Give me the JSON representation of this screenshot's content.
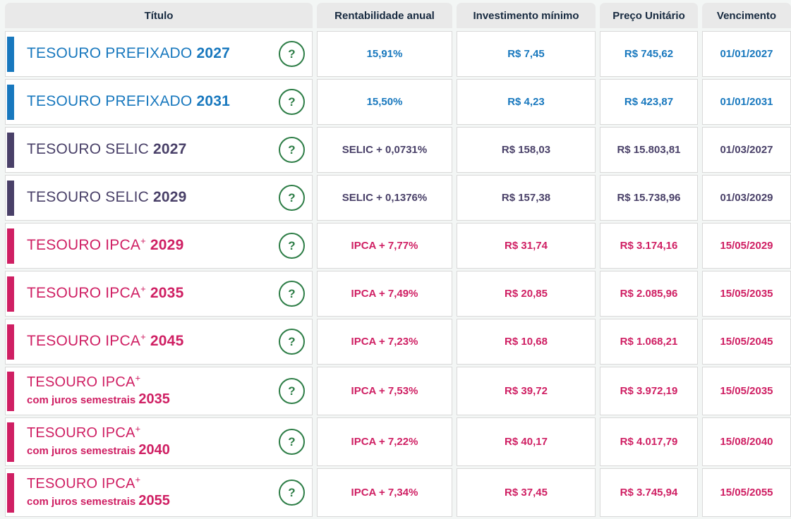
{
  "table": {
    "columns": [
      "Título",
      "Rentabilidade anual",
      "Investimento mínimo",
      "Preço Unitário",
      "Vencimento"
    ],
    "help_label": "?",
    "colors": {
      "prefixado": "#1878be",
      "selic": "#494068",
      "ipca": "#cf1f63",
      "help_green": "#2d7d46",
      "header_text": "#16293f",
      "header_bg": "#e9e9e9"
    },
    "rows": [
      {
        "theme": "prefixado",
        "title_main": "TESOURO PREFIXADO",
        "title_sup": "",
        "subtitle": "",
        "year": "2027",
        "rate": "15,91%",
        "min_investment": "R$ 7,45",
        "unit_price": "R$ 745,62",
        "maturity": "01/01/2027"
      },
      {
        "theme": "prefixado",
        "title_main": "TESOURO PREFIXADO",
        "title_sup": "",
        "subtitle": "",
        "year": "2031",
        "rate": "15,50%",
        "min_investment": "R$ 4,23",
        "unit_price": "R$ 423,87",
        "maturity": "01/01/2031"
      },
      {
        "theme": "selic",
        "title_main": "TESOURO SELIC",
        "title_sup": "",
        "subtitle": "",
        "year": "2027",
        "rate": "SELIC + 0,0731%",
        "min_investment": "R$ 158,03",
        "unit_price": "R$ 15.803,81",
        "maturity": "01/03/2027"
      },
      {
        "theme": "selic",
        "title_main": "TESOURO SELIC",
        "title_sup": "",
        "subtitle": "",
        "year": "2029",
        "rate": "SELIC + 0,1376%",
        "min_investment": "R$ 157,38",
        "unit_price": "R$ 15.738,96",
        "maturity": "01/03/2029"
      },
      {
        "theme": "ipca",
        "title_main": "TESOURO IPCA",
        "title_sup": "+",
        "subtitle": "",
        "year": "2029",
        "rate": "IPCA + 7,77%",
        "min_investment": "R$ 31,74",
        "unit_price": "R$ 3.174,16",
        "maturity": "15/05/2029"
      },
      {
        "theme": "ipca",
        "title_main": "TESOURO IPCA",
        "title_sup": "+",
        "subtitle": "",
        "year": "2035",
        "rate": "IPCA + 7,49%",
        "min_investment": "R$ 20,85",
        "unit_price": "R$ 2.085,96",
        "maturity": "15/05/2035"
      },
      {
        "theme": "ipca",
        "title_main": "TESOURO IPCA",
        "title_sup": "+",
        "subtitle": "",
        "year": "2045",
        "rate": "IPCA + 7,23%",
        "min_investment": "R$ 10,68",
        "unit_price": "R$ 1.068,21",
        "maturity": "15/05/2045"
      },
      {
        "theme": "ipca",
        "title_main": "TESOURO IPCA",
        "title_sup": "+",
        "subtitle": "com juros semestrais",
        "year": "2035",
        "rate": "IPCA + 7,53%",
        "min_investment": "R$ 39,72",
        "unit_price": "R$ 3.972,19",
        "maturity": "15/05/2035"
      },
      {
        "theme": "ipca",
        "title_main": "TESOURO IPCA",
        "title_sup": "+",
        "subtitle": "com juros semestrais",
        "year": "2040",
        "rate": "IPCA + 7,22%",
        "min_investment": "R$ 40,17",
        "unit_price": "R$ 4.017,79",
        "maturity": "15/08/2040"
      },
      {
        "theme": "ipca",
        "title_main": "TESOURO IPCA",
        "title_sup": "+",
        "subtitle": "com juros semestrais",
        "year": "2055",
        "rate": "IPCA + 7,34%",
        "min_investment": "R$ 37,45",
        "unit_price": "R$ 3.745,94",
        "maturity": "15/05/2055"
      }
    ]
  }
}
